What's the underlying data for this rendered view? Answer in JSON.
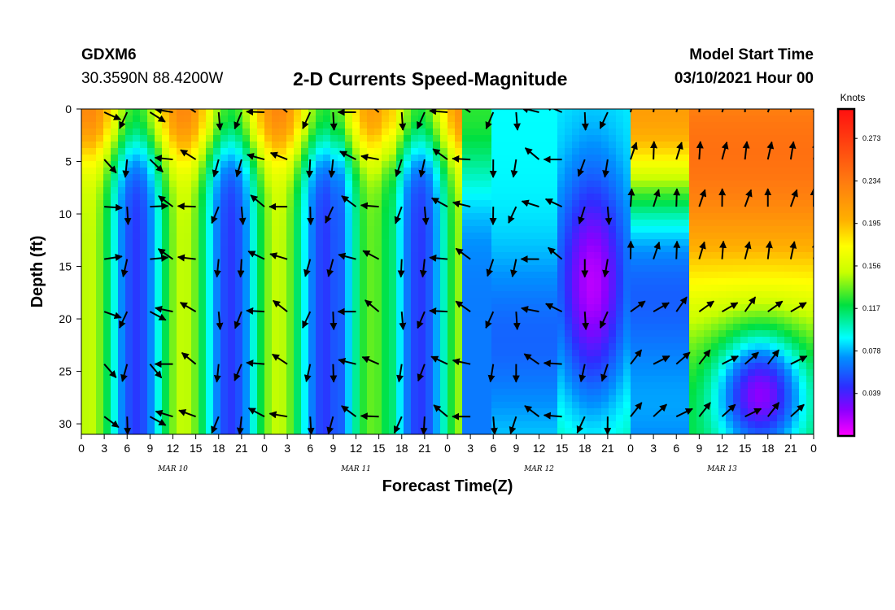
{
  "header": {
    "station_id": "GDXM6",
    "station_coord": "30.3590N 88.4200W",
    "model_start_label": "Model Start Time",
    "model_start_value": "03/10/2021 Hour 00"
  },
  "chart_data": {
    "type": "heatmap",
    "title": "2-D Currents Speed-Magnitude",
    "xlabel": "Forecast Time(Z)",
    "ylabel": "Depth (ft)",
    "colorbar_unit": "Knots",
    "colorbar_ticks": [
      0.039,
      0.078,
      0.117,
      0.156,
      0.195,
      0.234,
      0.273
    ],
    "colorbar_range": [
      0.0,
      0.3
    ],
    "x_tick_labels": [
      "0",
      "3",
      "6",
      "9",
      "12",
      "15",
      "18",
      "21",
      "0",
      "3",
      "6",
      "9",
      "12",
      "15",
      "18",
      "21",
      "0",
      "3",
      "6",
      "9",
      "12",
      "15",
      "18",
      "21",
      "0",
      "3",
      "6",
      "9",
      "12",
      "15",
      "18",
      "21",
      "0"
    ],
    "x_range_hours": [
      0,
      96
    ],
    "day_labels": [
      {
        "label": "MAR 10",
        "hour": 12
      },
      {
        "label": "MAR 11",
        "hour": 36
      },
      {
        "label": "MAR 12",
        "hour": 60
      },
      {
        "label": "MAR 13",
        "hour": 84
      }
    ],
    "y_ticks": [
      0,
      5,
      10,
      15,
      20,
      25,
      30
    ],
    "y_range_ft": [
      0,
      31
    ],
    "y_inverted": true,
    "arrows": "current direction vectors every ~3 h at depths 0-30 ft"
  }
}
